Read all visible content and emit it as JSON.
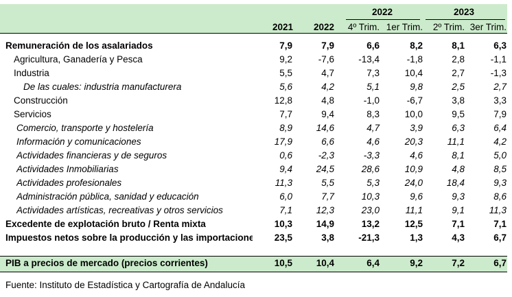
{
  "header": {
    "group_2022": "2022",
    "group_2023": "2023",
    "columns": [
      "2021",
      "2022",
      "4º Trim.",
      "1er Trim.",
      "2º Trim.",
      "3er Trim."
    ]
  },
  "rows": [
    {
      "label": "Remuneración de los asalariados",
      "values": [
        "7,9",
        "7,9",
        "6,6",
        "8,2",
        "8,1",
        "6,3"
      ],
      "style": "bold",
      "indent": 0
    },
    {
      "label": "Agricultura, Ganadería y Pesca",
      "values": [
        "9,2",
        "-7,6",
        "-13,4",
        "-1,8",
        "2,8",
        "-1,1"
      ],
      "style": "normal",
      "indent": 1
    },
    {
      "label": "Industria",
      "values": [
        "5,5",
        "4,7",
        "7,3",
        "10,4",
        "2,7",
        "-1,3"
      ],
      "style": "normal",
      "indent": 1
    },
    {
      "label": "De las cuales: industria manufacturera",
      "values": [
        "5,6",
        "4,2",
        "5,1",
        "9,8",
        "2,5",
        "2,7"
      ],
      "style": "italic",
      "indent": 2
    },
    {
      "label": "Construcción",
      "values": [
        "12,8",
        "4,8",
        "-1,0",
        "-6,7",
        "3,8",
        "3,3"
      ],
      "style": "normal",
      "indent": 1
    },
    {
      "label": "Servicios",
      "values": [
        "7,7",
        "9,4",
        "8,3",
        "10,0",
        "9,5",
        "7,9"
      ],
      "style": "normal",
      "indent": 1
    },
    {
      "label": "Comercio, transporte y hostelería",
      "values": [
        "8,9",
        "14,6",
        "4,7",
        "3,9",
        "6,3",
        "6,4"
      ],
      "style": "italic",
      "indent": 1.5
    },
    {
      "label": "Información y comunicaciones",
      "values": [
        "17,9",
        "6,6",
        "4,6",
        "20,3",
        "11,1",
        "4,2"
      ],
      "style": "italic",
      "indent": 1.5
    },
    {
      "label": "Actividades financieras y de seguros",
      "values": [
        "0,6",
        "-2,3",
        "-3,3",
        "4,6",
        "8,1",
        "5,0"
      ],
      "style": "italic",
      "indent": 1.5
    },
    {
      "label": "Actividades Inmobiliarias",
      "values": [
        "9,4",
        "24,5",
        "28,6",
        "10,9",
        "4,8",
        "8,5"
      ],
      "style": "italic",
      "indent": 1.5
    },
    {
      "label": "Actividades profesionales",
      "values": [
        "11,3",
        "5,5",
        "5,3",
        "24,0",
        "18,4",
        "9,3"
      ],
      "style": "italic",
      "indent": 1.5
    },
    {
      "label": "Administración pública, sanidad y educación",
      "values": [
        "6,0",
        "7,7",
        "10,3",
        "9,6",
        "9,3",
        "8,6"
      ],
      "style": "italic",
      "indent": 1.5
    },
    {
      "label": "Actividades artísticas, recreativas y otros servicios",
      "values": [
        "7,1",
        "12,3",
        "23,0",
        "11,1",
        "9,1",
        "11,3"
      ],
      "style": "italic",
      "indent": 1.5
    },
    {
      "label": "Excedente de explotación bruto / Renta mixta",
      "values": [
        "10,3",
        "14,9",
        "13,2",
        "12,5",
        "7,1",
        "7,1"
      ],
      "style": "bold",
      "indent": 0
    },
    {
      "label": "Impuestos netos sobre la producción y las importaciones",
      "values": [
        "23,5",
        "3,8",
        "-21,3",
        "1,3",
        "4,3",
        "6,7"
      ],
      "style": "bold",
      "indent": 0
    }
  ],
  "total": {
    "label": "PIB a precios de mercado (precios corrientes)",
    "values": [
      "10,5",
      "10,4",
      "6,4",
      "9,2",
      "7,2",
      "6,7"
    ]
  },
  "source": "Fuente: Instituto de Estadística y Cartografía de Andalucía"
}
